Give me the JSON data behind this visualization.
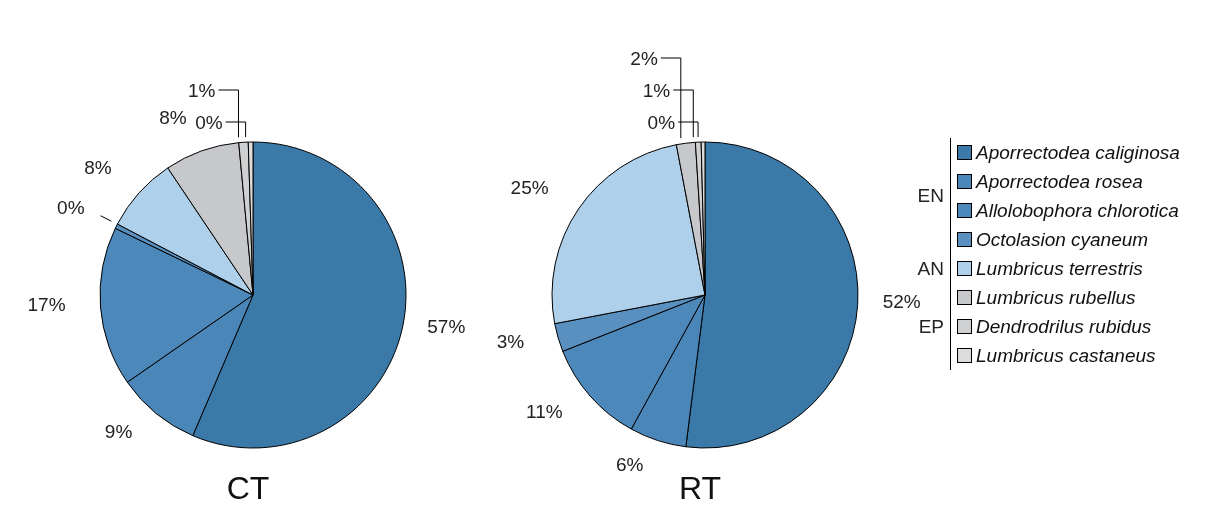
{
  "chart_data": [
    {
      "type": "pie",
      "title": "CT",
      "categories": [
        null,
        null,
        null,
        null,
        null,
        null,
        null,
        null
      ],
      "values": [
        57,
        9,
        17,
        0.5,
        8,
        8,
        1,
        0.5
      ],
      "value_labels": [
        "57%",
        "9%",
        "17%",
        "0%",
        "8%",
        "8%",
        "1%",
        "0%"
      ],
      "colors": [
        "#3b7aa8",
        "#4a86b8",
        "#4d88ba",
        "#5a90c0",
        "#aed0ea",
        "#c6c8cc",
        "#cfd0d2",
        "#dcdcdc"
      ],
      "legend": false
    },
    {
      "type": "pie",
      "title": "RT",
      "categories": [
        "Aporrectodea caliginosa",
        "Aporrectodea rosea",
        "Allolobophora chlorotica",
        "Octolasion cyaneum",
        "Lumbricus terrestris",
        "Lumbricus rubellus",
        "Dendrodrilus rubidus",
        "Lumbricus castaneus"
      ],
      "values": [
        52,
        6,
        11,
        3,
        25,
        2,
        0.6,
        0.4
      ],
      "value_labels": [
        "52%",
        "6%",
        "11%",
        "3%",
        "25%",
        "2%",
        "1%",
        "0%"
      ],
      "colors": [
        "#3b7aa8",
        "#4a86b8",
        "#4d88ba",
        "#5a90c0",
        "#aed0ea",
        "#c6c8cc",
        "#cfd0d2",
        "#dcdcdc"
      ],
      "legend": "right",
      "annotations": [
        "EN",
        "AN",
        "EP"
      ]
    }
  ]
}
